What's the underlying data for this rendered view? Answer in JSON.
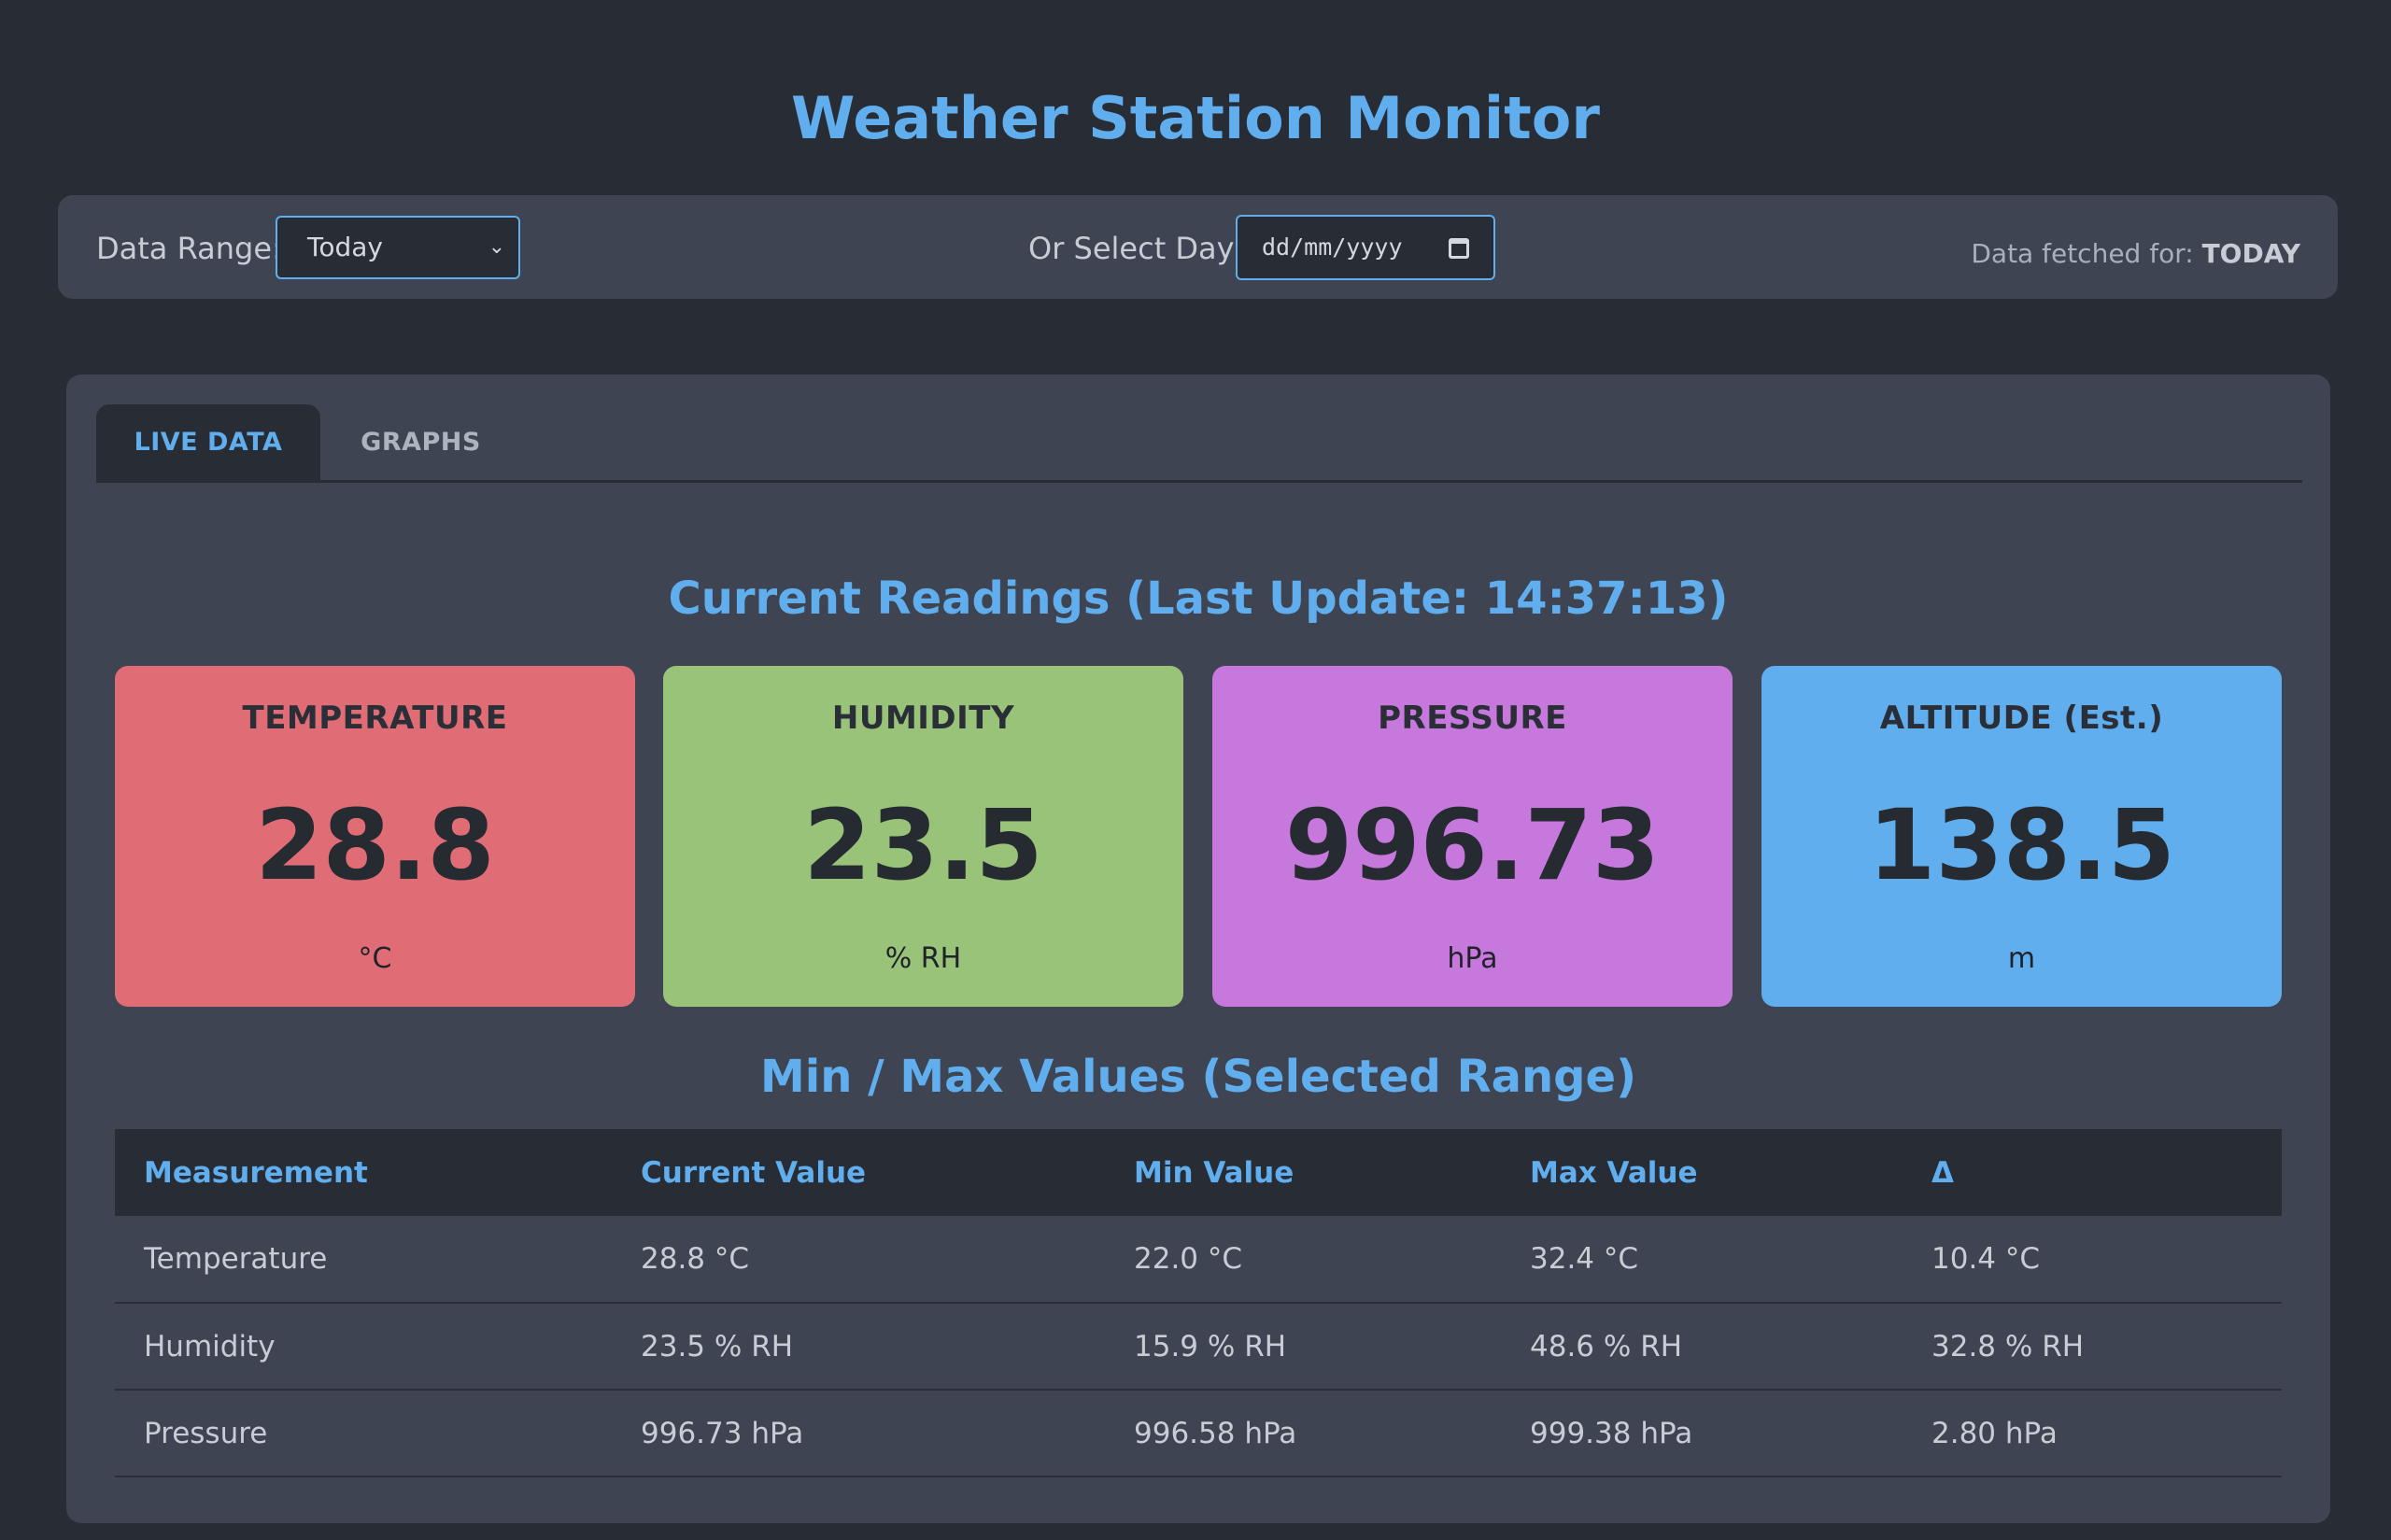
{
  "header": {
    "title": "Weather Station Monitor"
  },
  "controls": {
    "range_label": "Data Range:",
    "range_value": "Today",
    "day_label": "Or Select Day:",
    "date_placeholder": "dd/mm/yyyy",
    "fetched_prefix": "Data fetched for:",
    "fetched_value": "TODAY"
  },
  "tabs": [
    {
      "label": "LIVE DATA",
      "active": true
    },
    {
      "label": "GRAPHS",
      "active": false
    }
  ],
  "current": {
    "heading": "Current Readings (Last Update: 14:37:13)",
    "cards": [
      {
        "title": "TEMPERATURE",
        "value": "28.8",
        "unit": "°C",
        "color": "#e06c75"
      },
      {
        "title": "HUMIDITY",
        "value": "23.5",
        "unit": "% RH",
        "color": "#98c379"
      },
      {
        "title": "PRESSURE",
        "value": "996.73",
        "unit": "hPa",
        "color": "#c678dd"
      },
      {
        "title": "ALTITUDE (Est.)",
        "value": "138.5",
        "unit": "m",
        "color": "#61aeee"
      }
    ]
  },
  "minmax": {
    "heading": "Min / Max Values (Selected Range)",
    "columns": [
      "Measurement",
      "Current Value",
      "Min Value",
      "Max Value",
      "Δ"
    ],
    "rows": [
      [
        "Temperature",
        "28.8 °C",
        "22.0 °C",
        "32.4 °C",
        "10.4 °C"
      ],
      [
        "Humidity",
        "23.5 % RH",
        "15.9 % RH",
        "48.6 % RH",
        "32.8 % RH"
      ],
      [
        "Pressure",
        "996.73 hPa",
        "996.58 hPa",
        "999.38 hPa",
        "2.80 hPa"
      ]
    ]
  }
}
